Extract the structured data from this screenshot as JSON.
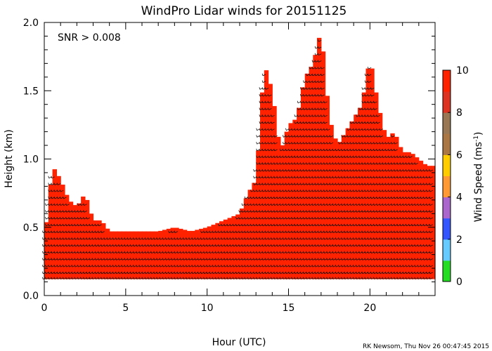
{
  "chart_data": {
    "type": "heatmap",
    "title": "WindPro Lidar winds for 20151125",
    "annotation": "SNR > 0.008",
    "xlabel": "Hour (UTC)",
    "ylabel": "Height (km)",
    "xlim": [
      0,
      24
    ],
    "ylim": [
      0,
      2
    ],
    "x_ticks": [
      0,
      5,
      10,
      15,
      20
    ],
    "y_ticks": [
      "0.0",
      "0.5",
      "1.0",
      "1.5",
      "2.0"
    ],
    "colorbar": {
      "label": "Wind Speed (ms",
      "label_sup": "-1",
      "label_end": ")",
      "range": [
        0,
        10
      ],
      "ticks": [
        0,
        2,
        4,
        6,
        8,
        10
      ],
      "colors": [
        "#22dd22",
        "#66ccff",
        "#3355ff",
        "#aa66cc",
        "#ff9933",
        "#ffcc00",
        "#aa7744",
        "#997755",
        "#dd3322",
        "#ff2200"
      ]
    },
    "footer": "RK Newsom, Thu Nov 26 00:47:45 2015",
    "cell_color": "#ff2200",
    "data_top_km": {
      "hour": [
        0,
        0.5,
        1,
        1.5,
        2,
        2.5,
        3,
        3.5,
        4,
        5,
        6,
        7,
        8,
        9,
        10,
        11,
        12,
        12.5,
        13,
        13.5,
        14,
        14.5,
        15,
        15.5,
        16,
        16.5,
        17,
        17.5,
        18,
        18.5,
        19,
        19.5,
        20,
        20.5,
        21,
        21.5,
        22,
        22.5,
        23,
        23.5,
        24
      ],
      "top_km": [
        0.4,
        0.95,
        0.85,
        0.7,
        0.65,
        0.75,
        0.55,
        0.55,
        0.47,
        0.47,
        0.47,
        0.47,
        0.5,
        0.47,
        0.5,
        0.55,
        0.6,
        0.75,
        0.85,
        1.7,
        1.5,
        1.05,
        1.25,
        1.3,
        1.6,
        1.7,
        1.95,
        1.3,
        1.1,
        1.2,
        1.3,
        1.4,
        1.75,
        1.4,
        1.15,
        1.2,
        1.05,
        1.05,
        1.0,
        0.95,
        0.95
      ]
    },
    "barb_levels_km": [
      0.13,
      0.17,
      0.22,
      0.27,
      0.32,
      0.37,
      0.42,
      0.47,
      0.52,
      0.57,
      0.62,
      0.67,
      0.72,
      0.77,
      0.82,
      0.87,
      0.92,
      0.97,
      1.02,
      1.07,
      1.12,
      1.17,
      1.22,
      1.27,
      1.32,
      1.37,
      1.42,
      1.47,
      1.52,
      1.57,
      1.62,
      1.67,
      1.72,
      1.77,
      1.82,
      1.87,
      1.92,
      1.97
    ]
  }
}
